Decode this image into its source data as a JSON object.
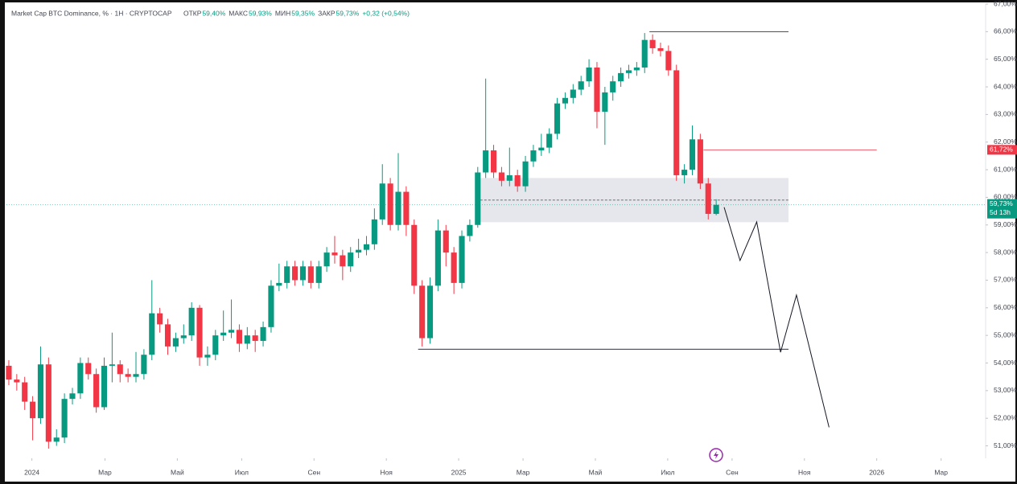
{
  "chart_data": {
    "type": "candlestick",
    "header": {
      "symbol": "Market Cap BTC Dominance, % · 1Н · CRYPTOCAP",
      "fields": [
        {
          "label": "ОТКР",
          "value": "59,40%"
        },
        {
          "label": "МАКС",
          "value": "59,93%"
        },
        {
          "label": "МИН",
          "value": "59,35%"
        },
        {
          "label": "ЗАКР",
          "value": "59,73%"
        }
      ],
      "change": "+0,32 (+0,54%)"
    },
    "up_color": "#089981",
    "down_color": "#f23645",
    "open": [
      53.9,
      53.4,
      53.3,
      52.6,
      52.0,
      53.95,
      51.15,
      51.3,
      52.7,
      52.9,
      54.0,
      53.6,
      52.4,
      53.9,
      53.95,
      53.6,
      53.5,
      53.6,
      54.3,
      55.8,
      55.4,
      54.6,
      54.9,
      55.0,
      56.0,
      54.2,
      54.3,
      55.0,
      55.1,
      55.2,
      54.7,
      55.0,
      54.8,
      55.3,
      56.8,
      56.9,
      57.5,
      57.0,
      57.5,
      56.9,
      57.5,
      58.0,
      57.9,
      57.5,
      58.0,
      58.1,
      58.3,
      59.2,
      60.5,
      59.0,
      60.2,
      59.0,
      56.8,
      54.9,
      56.8,
      58.8,
      58.0,
      56.9,
      58.6,
      59.0,
      60.9,
      61.7,
      60.9,
      60.6,
      60.8,
      60.4,
      61.3,
      61.7,
      61.8,
      62.3,
      63.4,
      63.6,
      63.9,
      64.2,
      64.7,
      63.1,
      63.8,
      64.2,
      64.5,
      64.6,
      64.7,
      65.7,
      65.4,
      65.3,
      64.6,
      60.8,
      61.0,
      62.1,
      60.5,
      59.4
    ],
    "high": [
      54.1,
      53.6,
      53.5,
      52.8,
      54.6,
      54.2,
      51.6,
      52.9,
      53.1,
      54.2,
      54.2,
      53.8,
      54.2,
      55.1,
      54.1,
      53.8,
      54.4,
      54.5,
      57.0,
      56.0,
      55.6,
      55.1,
      55.4,
      56.2,
      56.1,
      54.6,
      55.2,
      55.9,
      56.3,
      55.4,
      55.3,
      55.2,
      55.5,
      57.0,
      57.6,
      57.7,
      57.7,
      57.7,
      57.7,
      57.7,
      58.2,
      58.6,
      58.1,
      58.2,
      58.5,
      58.6,
      59.6,
      61.2,
      60.7,
      61.6,
      60.4,
      59.2,
      57.0,
      57.1,
      59.2,
      59.0,
      58.2,
      58.8,
      59.2,
      61.1,
      64.3,
      61.9,
      61.1,
      61.8,
      61.0,
      61.5,
      61.9,
      62.3,
      62.5,
      63.6,
      63.8,
      64.1,
      64.4,
      65.0,
      64.9,
      64.0,
      64.4,
      64.7,
      64.8,
      64.9,
      65.95,
      65.9,
      65.6,
      65.5,
      64.8,
      61.2,
      62.6,
      62.3,
      60.7,
      59.93
    ],
    "low": [
      53.2,
      53.0,
      52.3,
      51.2,
      51.8,
      50.9,
      51.0,
      51.1,
      52.5,
      52.7,
      53.4,
      52.2,
      52.3,
      53.3,
      53.3,
      53.3,
      53.3,
      53.4,
      54.1,
      55.1,
      54.3,
      54.4,
      54.7,
      54.8,
      53.9,
      53.9,
      54.1,
      54.8,
      54.9,
      54.4,
      54.5,
      54.4,
      54.6,
      55.1,
      56.6,
      56.7,
      56.8,
      56.8,
      56.7,
      56.7,
      57.3,
      57.6,
      57.0,
      57.3,
      57.8,
      57.9,
      58.1,
      59.0,
      58.8,
      58.8,
      58.6,
      56.5,
      54.6,
      54.7,
      56.6,
      57.5,
      56.5,
      56.7,
      58.4,
      58.9,
      60.7,
      60.7,
      60.4,
      60.4,
      60.2,
      60.2,
      61.1,
      61.5,
      61.6,
      62.1,
      63.2,
      63.4,
      63.7,
      64.0,
      62.5,
      61.9,
      63.5,
      64.0,
      64.3,
      64.4,
      64.5,
      65.2,
      65.1,
      64.4,
      60.6,
      60.5,
      60.8,
      60.3,
      59.2,
      59.35
    ],
    "close": [
      53.4,
      53.3,
      52.6,
      52.0,
      53.95,
      51.15,
      51.3,
      52.7,
      52.9,
      54.0,
      53.6,
      52.4,
      53.9,
      53.95,
      53.6,
      53.5,
      53.6,
      54.3,
      55.8,
      55.4,
      54.6,
      54.9,
      55.0,
      56.0,
      54.2,
      54.3,
      55.0,
      55.1,
      55.2,
      54.7,
      55.0,
      54.8,
      55.3,
      56.8,
      56.9,
      57.5,
      57.0,
      57.5,
      56.9,
      57.5,
      58.0,
      57.9,
      57.5,
      58.0,
      58.1,
      58.3,
      59.2,
      60.5,
      59.0,
      60.2,
      59.0,
      56.8,
      54.9,
      56.8,
      58.8,
      58.0,
      56.9,
      58.6,
      59.0,
      60.9,
      61.7,
      60.9,
      60.6,
      60.8,
      60.4,
      61.3,
      61.7,
      61.8,
      62.3,
      63.4,
      63.6,
      63.9,
      64.2,
      64.7,
      63.1,
      63.8,
      64.2,
      64.5,
      64.6,
      64.7,
      65.7,
      65.4,
      65.3,
      64.6,
      60.8,
      61.0,
      62.1,
      60.5,
      59.4,
      59.73
    ],
    "xlim": [
      -0.3,
      122.9
    ],
    "ylim": [
      50.55,
      67.0
    ],
    "xticks": [
      {
        "value": 2.9,
        "label": "2024"
      },
      {
        "value": 12.1,
        "label": "Мар"
      },
      {
        "value": 21.2,
        "label": "Май"
      },
      {
        "value": 29.3,
        "label": "Июл"
      },
      {
        "value": 38.4,
        "label": "Сен"
      },
      {
        "value": 47.5,
        "label": "Ноя"
      },
      {
        "value": 56.6,
        "label": "2025"
      },
      {
        "value": 64.7,
        "label": "Мар"
      },
      {
        "value": 73.8,
        "label": "Май"
      },
      {
        "value": 82.9,
        "label": "Июл"
      },
      {
        "value": 91.0,
        "label": "Сен"
      },
      {
        "value": 100.1,
        "label": "Ноя"
      },
      {
        "value": 109.2,
        "label": "2026"
      },
      {
        "value": 117.3,
        "label": "Мар"
      }
    ],
    "yticks": [
      {
        "value": 51,
        "label": "51,00%"
      },
      {
        "value": 52,
        "label": "52,00%"
      },
      {
        "value": 53,
        "label": "53,00%"
      },
      {
        "value": 54,
        "label": "54,00%"
      },
      {
        "value": 55,
        "label": "55,00%"
      },
      {
        "value": 56,
        "label": "56,00%"
      },
      {
        "value": 57,
        "label": "57,00%"
      },
      {
        "value": 58,
        "label": "58,00%"
      },
      {
        "value": 59,
        "label": "59,00%"
      },
      {
        "value": 60,
        "label": "60,00%"
      },
      {
        "value": 61,
        "label": "61,00%"
      },
      {
        "value": 62,
        "label": "62,00%"
      },
      {
        "value": 63,
        "label": "63,00%"
      },
      {
        "value": 64,
        "label": "64,00%"
      },
      {
        "value": 65,
        "label": "65,00%"
      },
      {
        "value": 66,
        "label": "66,00%"
      },
      {
        "value": 67,
        "label": "67,00%"
      }
    ],
    "levels": [
      {
        "value": 66.0,
        "x": [
          80.6,
          98.1
        ],
        "color": "#131722"
      },
      {
        "value": 61.72,
        "x": [
          87.4,
          109.2
        ],
        "color": "#f23645",
        "value_label": "61,72%"
      },
      {
        "value": 54.5,
        "x": [
          51.5,
          98.1
        ],
        "color": "#131722"
      }
    ],
    "zone": {
      "y": [
        59.1,
        60.7
      ],
      "x": [
        58.8,
        98.1
      ],
      "mid": 59.9
    },
    "last_price": {
      "value": 59.73,
      "value_label": "59,73%",
      "countdown": "5d 13h"
    },
    "projection": {
      "x": [
        90.0,
        92.0,
        94.1,
        97.1,
        99.1,
        103.2
      ],
      "y": [
        59.64,
        57.71,
        59.11,
        54.39,
        56.46,
        51.67
      ]
    }
  }
}
